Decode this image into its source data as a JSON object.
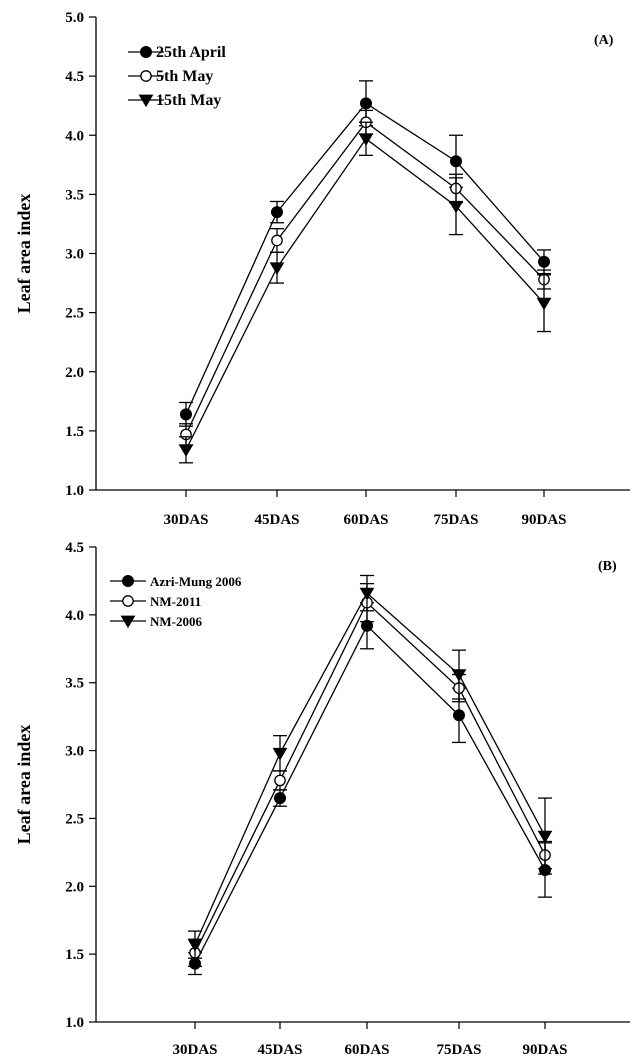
{
  "chart_data": [
    {
      "type": "line",
      "panel_label": "(A)",
      "ylabel": "Leaf area index",
      "xlabel": "",
      "categories": [
        "30DAS",
        "45DAS",
        "60DAS",
        "75DAS",
        "90DAS"
      ],
      "ylim": [
        1.0,
        5.0
      ],
      "yticks": [
        "1.0",
        "1.5",
        "2.0",
        "2.5",
        "3.0",
        "3.5",
        "4.0",
        "4.5",
        "5.0"
      ],
      "legend_position": "top-left",
      "grid": false,
      "series": [
        {
          "name": "25th April",
          "marker": "filled-circle",
          "values": [
            1.64,
            3.35,
            4.27,
            3.78,
            2.93
          ],
          "errors": [
            0.1,
            0.09,
            0.19,
            0.22,
            0.1
          ]
        },
        {
          "name": "5th May",
          "marker": "open-circle",
          "values": [
            1.47,
            3.11,
            4.11,
            3.55,
            2.78
          ],
          "errors": [
            0.09,
            0.1,
            0.1,
            0.12,
            0.08
          ]
        },
        {
          "name": "15th May",
          "marker": "filled-triangle-down",
          "values": [
            1.34,
            2.88,
            3.97,
            3.4,
            2.58
          ],
          "errors": [
            0.11,
            0.13,
            0.14,
            0.24,
            0.24
          ]
        }
      ]
    },
    {
      "type": "line",
      "panel_label": "(B)",
      "ylabel": "Leaf  area index",
      "xlabel": "",
      "categories": [
        "30DAS",
        "45DAS",
        "60DAS",
        "75DAS",
        "90DAS"
      ],
      "ylim": [
        1.0,
        4.5
      ],
      "yticks": [
        "1.0",
        "1.5",
        "2.0",
        "2.5",
        "3.0",
        "3.5",
        "4.0",
        "4.5"
      ],
      "legend_position": "top-left",
      "grid": false,
      "series": [
        {
          "name": "Azri-Mung 2006",
          "marker": "filled-circle",
          "values": [
            1.43,
            2.65,
            3.92,
            3.26,
            2.12
          ],
          "errors": [
            0.08,
            0.06,
            0.17,
            0.2,
            0.2
          ]
        },
        {
          "name": "NM-2011",
          "marker": "open-circle",
          "values": [
            1.51,
            2.78,
            4.09,
            3.46,
            2.23
          ],
          "errors": [
            0.1,
            0.07,
            0.14,
            0.1,
            0.1
          ]
        },
        {
          "name": "NM-2006",
          "marker": "filled-triangle-down",
          "values": [
            1.57,
            2.98,
            4.16,
            3.56,
            2.37
          ],
          "errors": [
            0.1,
            0.13,
            0.13,
            0.18,
            0.28
          ]
        }
      ]
    }
  ]
}
